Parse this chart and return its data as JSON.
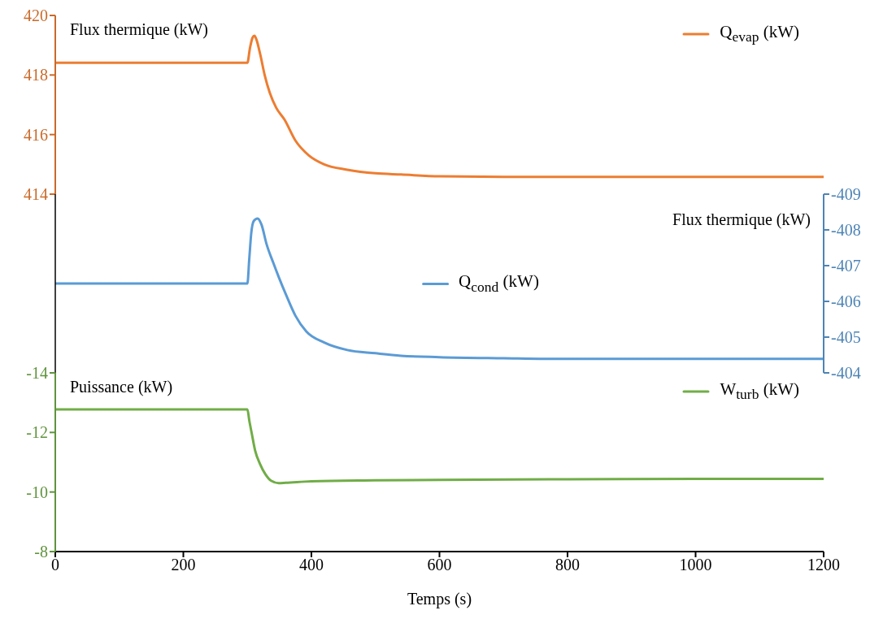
{
  "chart_data": [
    {
      "type": "line",
      "ylabel": "Flux thermique (kW)",
      "xlim": [
        0,
        1200
      ],
      "xticks": [
        0,
        200,
        400,
        600,
        800,
        1000,
        1200
      ],
      "ylim": [
        414,
        420
      ],
      "yticks": [
        414,
        416,
        418,
        420
      ],
      "tick_labels": "y",
      "legend": "top right",
      "grid": false,
      "marker": "none",
      "series": [
        {
          "name": "Q$_{evap}$ (kW)",
          "color": "#ed7d31",
          "x": [
            0,
            300,
            304,
            308,
            311,
            314,
            320,
            327,
            335,
            345,
            358,
            375,
            396,
            420,
            456,
            500,
            540,
            600,
            700,
            800,
            1000,
            1200
          ],
          "values": [
            418.41,
            418.41,
            418.9,
            419.25,
            419.32,
            419.2,
            418.7,
            418.0,
            417.4,
            416.9,
            416.5,
            415.8,
            415.3,
            415.0,
            414.82,
            414.7,
            414.66,
            414.6,
            414.58,
            414.58,
            414.58,
            414.58
          ]
        }
      ]
    },
    {
      "type": "line",
      "y2label": "Flux thermique (kW)",
      "xlim": [
        0,
        1200
      ],
      "xticks": [
        0,
        200,
        400,
        600,
        800,
        1000,
        1200
      ],
      "y2lim": [
        -404,
        -409
      ],
      "y2ticks": [
        -404,
        -405,
        -406,
        -407,
        -408,
        -409
      ],
      "tick_labels": "y",
      "legend": "center",
      "grid": false,
      "marker": "none",
      "series": [
        {
          "name": "Q$_{cond}$ (kW)",
          "color": "#5b9bd5",
          "axis": "y2",
          "x": [
            0,
            300,
            303,
            306,
            310,
            316,
            322,
            330,
            340,
            349,
            360,
            375,
            392,
            420,
            456,
            500,
            540,
            600,
            700,
            800,
            1000,
            1200
          ],
          "values": [
            -406.5,
            -406.5,
            -407.2,
            -407.9,
            -408.25,
            -408.32,
            -408.15,
            -407.6,
            -407.1,
            -406.68,
            -406.2,
            -405.6,
            -405.16,
            -404.85,
            -404.64,
            -404.55,
            -404.48,
            -404.44,
            -404.41,
            -404.39,
            -404.39,
            -404.39
          ]
        }
      ]
    },
    {
      "type": "line",
      "ylabel": "Puissance (kW)",
      "xlabel": "Temps (s)",
      "xlim": [
        0,
        1200
      ],
      "xticks": [
        0,
        200,
        400,
        600,
        800,
        1000,
        1200
      ],
      "ylim": [
        -8,
        -14
      ],
      "yticks": [
        -8,
        -10,
        -12,
        -14
      ],
      "legend": "top right",
      "grid": false,
      "marker": "none",
      "series": [
        {
          "name": "W$_{turb}$ (kW)",
          "color": "#70ad47",
          "x": [
            0,
            300,
            303,
            307,
            312,
            320,
            328,
            337,
            349,
            360,
            400,
            500,
            600,
            800,
            1000,
            1200
          ],
          "values": [
            -12.77,
            -12.77,
            -12.4,
            -11.95,
            -11.4,
            -10.93,
            -10.6,
            -10.38,
            -10.3,
            -10.31,
            -10.36,
            -10.39,
            -10.41,
            -10.43,
            -10.44,
            -10.44
          ]
        }
      ]
    }
  ]
}
